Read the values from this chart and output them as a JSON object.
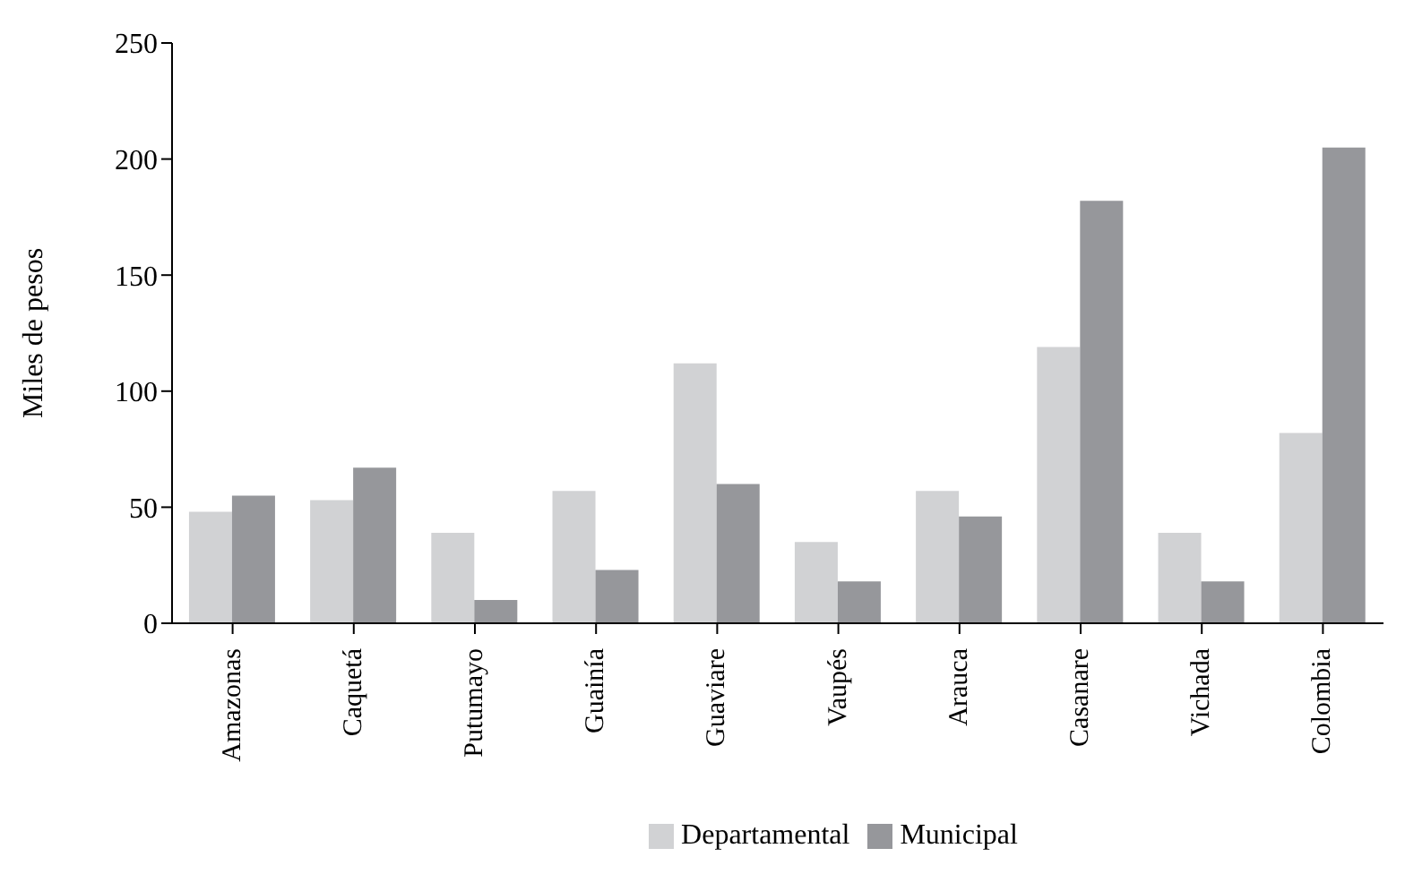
{
  "chart_data": {
    "type": "bar",
    "ylabel": "Miles de pesos",
    "categories": [
      "Amazonas",
      "Caquetá",
      "Putumayo",
      "Guainía",
      "Guaviare",
      "Vaupés",
      "Arauca",
      "Casanare",
      "Vichada",
      "Colombia"
    ],
    "series": [
      {
        "name": "Departamental",
        "color": "#d1d2d4",
        "values": [
          48,
          53,
          39,
          57,
          112,
          35,
          57,
          119,
          39,
          82
        ]
      },
      {
        "name": "Municipal",
        "color": "#96979b",
        "values": [
          55,
          67,
          10,
          23,
          60,
          18,
          46,
          182,
          18,
          205
        ]
      }
    ],
    "ylim": [
      0,
      250
    ],
    "yticks": [
      0,
      50,
      100,
      150,
      200,
      250
    ],
    "grid": false,
    "legend": "bottom"
  }
}
